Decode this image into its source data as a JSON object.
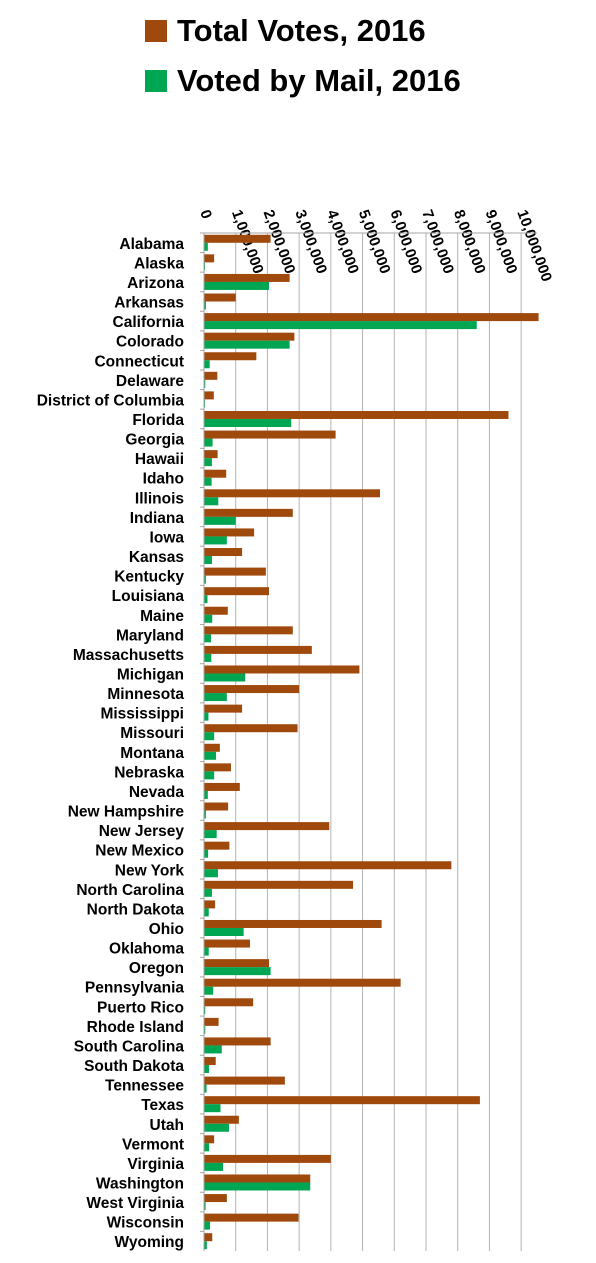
{
  "chart_data": {
    "type": "bar",
    "orientation": "horizontal",
    "title": "",
    "xlabel": "",
    "ylabel": "",
    "xlim": [
      0,
      10500000
    ],
    "x_ticks": [
      0,
      1000000,
      2000000,
      3000000,
      4000000,
      5000000,
      6000000,
      7000000,
      8000000,
      9000000,
      10000000
    ],
    "x_tick_labels": [
      "0",
      "1,000,000",
      "2,000,000",
      "3,000,000",
      "4,000,000",
      "5,000,000",
      "6,000,000",
      "7,000,000",
      "8,000,000",
      "9,000,000",
      "10,000,000"
    ],
    "grid": "vertical",
    "legend_position": "top",
    "categories": [
      "Alabama",
      "Alaska",
      "Arizona",
      "Arkansas",
      "California",
      "Colorado",
      "Connecticut",
      "Delaware",
      "District of Columbia",
      "Florida",
      "Georgia",
      "Hawaii",
      "Idaho",
      "Illinois",
      "Indiana",
      "Iowa",
      "Kansas",
      "Kentucky",
      "Louisiana",
      "Maine",
      "Maryland",
      "Massachusetts",
      "Michigan",
      "Minnesota",
      "Mississippi",
      "Missouri",
      "Montana",
      "Nebraska",
      "Nevada",
      "New Hampshire",
      "New Jersey",
      "New Mexico",
      "New York",
      "North Carolina",
      "North Dakota",
      "Ohio",
      "Oklahoma",
      "Oregon",
      "Pennsylvania",
      "Puerto Rico",
      "Rhode Island",
      "South Carolina",
      "South Dakota",
      "Tennessee",
      "Texas",
      "Utah",
      "Vermont",
      "Virginia",
      "Washington",
      "West Virginia",
      "Wisconsin",
      "Wyoming"
    ],
    "series": [
      {
        "name": "Total Votes, 2016",
        "color": "#A0490D",
        "values": [
          2100000,
          320000,
          2700000,
          1000000,
          10550000,
          2850000,
          1650000,
          420000,
          310000,
          9600000,
          4150000,
          430000,
          700000,
          5550000,
          2800000,
          1580000,
          1200000,
          1950000,
          2050000,
          750000,
          2800000,
          3400000,
          4900000,
          3000000,
          1200000,
          2950000,
          500000,
          850000,
          1130000,
          760000,
          3950000,
          800000,
          7800000,
          4700000,
          350000,
          5600000,
          1450000,
          2050000,
          6200000,
          1550000,
          460000,
          2100000,
          370000,
          2550000,
          8700000,
          1100000,
          320000,
          4000000,
          3350000,
          720000,
          2980000,
          260000
        ]
      },
      {
        "name": "Voted by Mail, 2016",
        "color": "#00A651",
        "values": [
          120000,
          30000,
          2050000,
          60000,
          8600000,
          2700000,
          180000,
          40000,
          30000,
          2750000,
          270000,
          250000,
          240000,
          450000,
          1000000,
          720000,
          250000,
          60000,
          110000,
          260000,
          220000,
          230000,
          1300000,
          720000,
          140000,
          320000,
          380000,
          320000,
          120000,
          60000,
          400000,
          130000,
          440000,
          250000,
          150000,
          1250000,
          150000,
          2100000,
          290000,
          40000,
          40000,
          560000,
          160000,
          80000,
          520000,
          790000,
          160000,
          600000,
          3350000,
          50000,
          190000,
          90000
        ]
      }
    ]
  }
}
